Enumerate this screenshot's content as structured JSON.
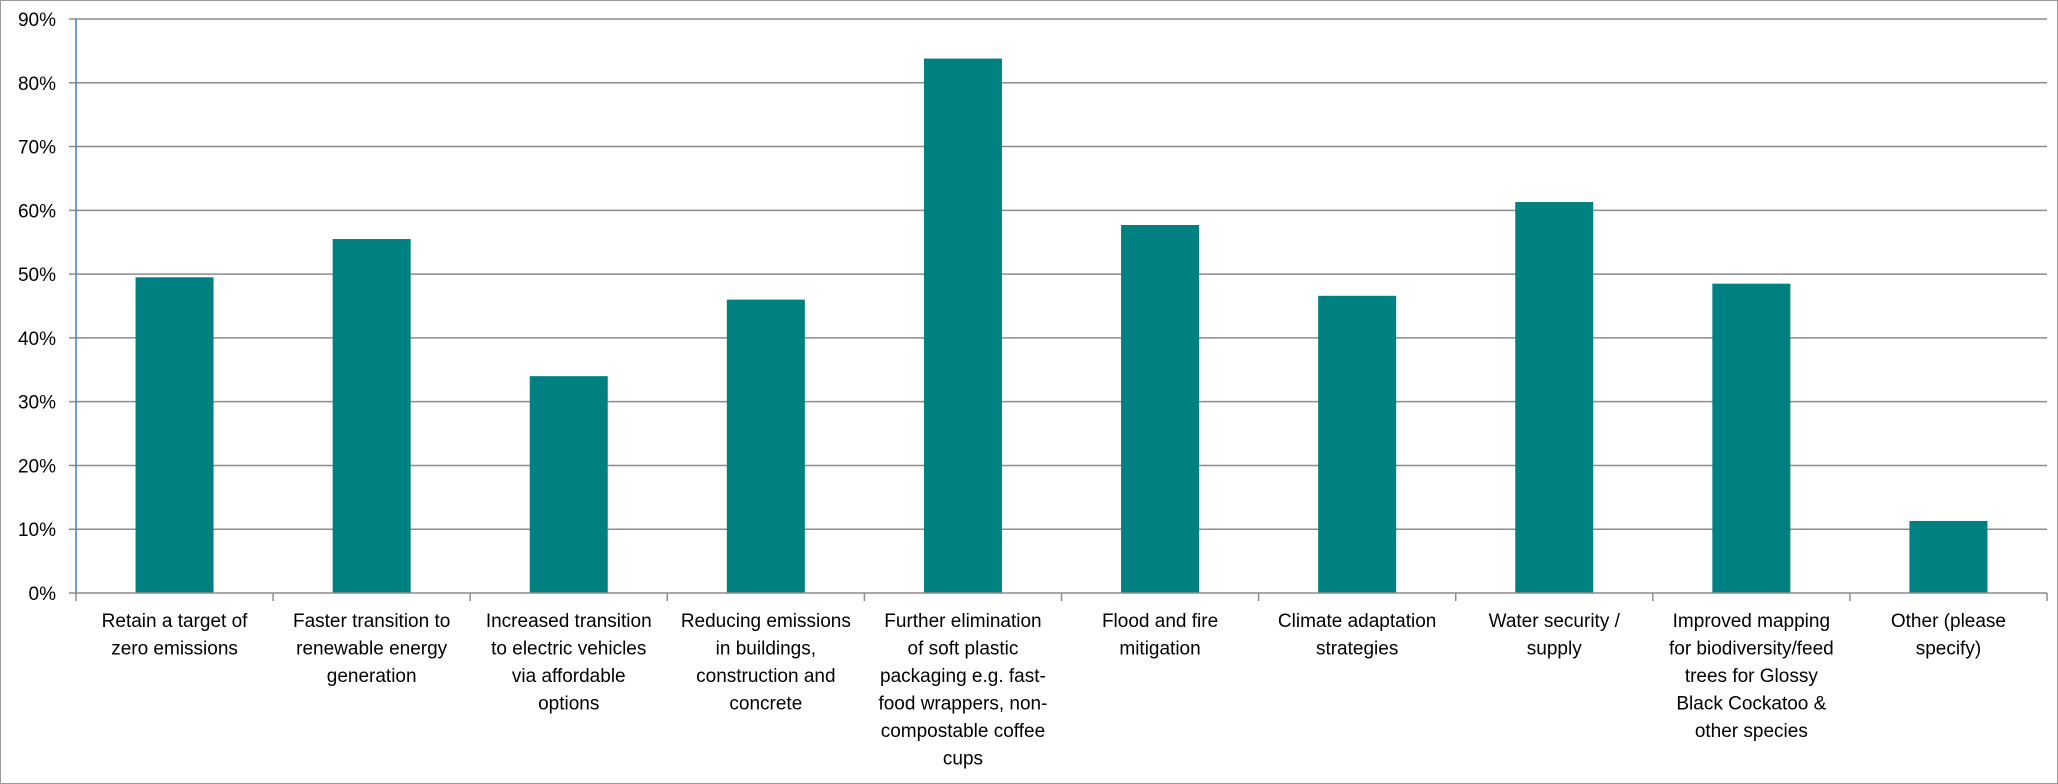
{
  "chart_data": {
    "type": "bar",
    "title": "",
    "xlabel": "",
    "ylabel": "",
    "categories": [
      [
        "Retain a target of",
        "zero emissions"
      ],
      [
        "Faster transition to",
        "renewable energy",
        "generation"
      ],
      [
        "Increased transition",
        "to electric vehicles",
        "via affordable",
        "options"
      ],
      [
        "Reducing emissions",
        "in buildings,",
        "construction and",
        "concrete"
      ],
      [
        "Further elimination",
        "of soft plastic",
        "packaging e.g. fast-",
        "food wrappers, non-",
        "compostable coffee",
        "cups"
      ],
      [
        "Flood and fire",
        "mitigation"
      ],
      [
        "Climate adaptation",
        "strategies"
      ],
      [
        "Water security /",
        "supply"
      ],
      [
        "Improved mapping",
        "for biodiversity/feed",
        "trees for Glossy",
        "Black Cockatoo &",
        "other species"
      ],
      [
        "Other (please",
        "specify)"
      ]
    ],
    "values": [
      49.5,
      55.5,
      34,
      46,
      83.8,
      57.7,
      46.6,
      61.3,
      48.5,
      11.3
    ],
    "ylim": [
      0,
      90
    ],
    "yticks": [
      "0%",
      "10%",
      "20%",
      "30%",
      "40%",
      "50%",
      "60%",
      "70%",
      "80%",
      "90%"
    ],
    "grid": true,
    "legend": "none",
    "colors": {
      "bar": "#008080",
      "grid": "#8c8c8c",
      "axis": "#8c8c8c",
      "left_axis": "#4a7ebb"
    }
  }
}
